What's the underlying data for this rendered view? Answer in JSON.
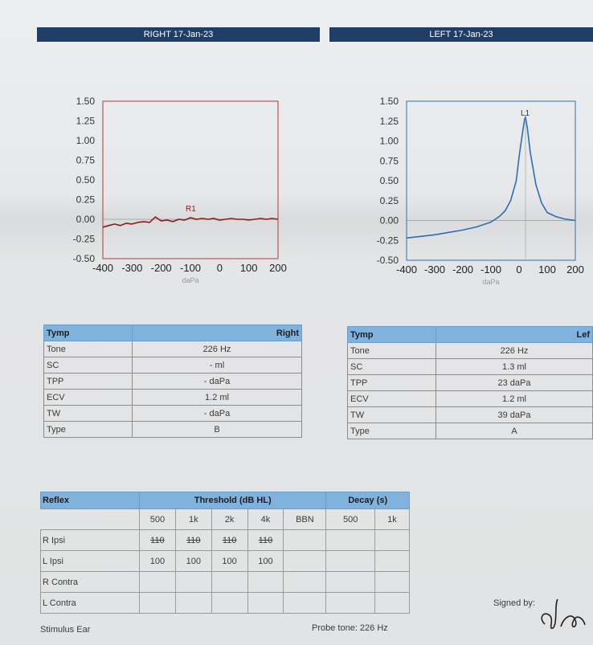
{
  "headers": {
    "right": "RIGHT  17-Jan-23",
    "left": "LEFT  17-Jan-23"
  },
  "chart_data": [
    {
      "type": "line",
      "title": "",
      "xlabel": "daPa",
      "ylabel": "",
      "xlim": [
        -400,
        200
      ],
      "ylim": [
        -0.5,
        1.5
      ],
      "x_ticks": [
        -400,
        -300,
        -200,
        -100,
        0,
        100,
        200
      ],
      "y_ticks": [
        1.5,
        1.25,
        1.0,
        0.75,
        0.5,
        0.25,
        0.0,
        -0.25,
        -0.5
      ],
      "marker": {
        "label": "R1",
        "x": -100,
        "y": 0.02
      },
      "color": "#8b1a1a",
      "series": [
        {
          "x": [
            -400,
            -380,
            -360,
            -340,
            -320,
            -300,
            -280,
            -260,
            -240,
            -220,
            -200,
            -180,
            -160,
            -140,
            -120,
            -100,
            -80,
            -60,
            -40,
            -20,
            0,
            20,
            40,
            60,
            80,
            100,
            120,
            140,
            160,
            180,
            200
          ],
          "y": [
            -0.1,
            -0.08,
            -0.06,
            -0.08,
            -0.05,
            -0.06,
            -0.04,
            -0.03,
            -0.04,
            0.03,
            -0.02,
            -0.01,
            -0.03,
            0.0,
            -0.01,
            0.02,
            0.0,
            0.01,
            0.0,
            0.01,
            -0.01,
            0.0,
            0.01,
            0.0,
            0.0,
            -0.01,
            0.0,
            0.01,
            0.0,
            0.01,
            0.0
          ]
        }
      ]
    },
    {
      "type": "line",
      "title": "",
      "xlabel": "daPa",
      "ylabel": "",
      "xlim": [
        -400,
        200
      ],
      "ylim": [
        -0.5,
        1.5
      ],
      "x_ticks": [
        -400,
        -300,
        -200,
        -100,
        0,
        100,
        200
      ],
      "y_ticks": [
        1.5,
        1.25,
        1.0,
        0.75,
        0.5,
        0.25,
        0.0,
        -0.25,
        -0.5
      ],
      "marker": {
        "label": "L1",
        "x": 23,
        "y": 1.3
      },
      "color": "#2c6fb8",
      "series": [
        {
          "x": [
            -400,
            -350,
            -300,
            -250,
            -200,
            -150,
            -100,
            -70,
            -50,
            -30,
            -10,
            0,
            10,
            20,
            23,
            30,
            40,
            60,
            80,
            100,
            130,
            160,
            200
          ],
          "y": [
            -0.22,
            -0.2,
            -0.18,
            -0.15,
            -0.12,
            -0.08,
            -0.02,
            0.05,
            0.12,
            0.25,
            0.5,
            0.8,
            1.05,
            1.28,
            1.3,
            1.15,
            0.85,
            0.45,
            0.22,
            0.1,
            0.05,
            0.02,
            0.0
          ]
        }
      ]
    }
  ],
  "tymp_right": {
    "title": "Tymp",
    "side": "Right",
    "rows": [
      {
        "label": "Tone",
        "value": "226 Hz"
      },
      {
        "label": "SC",
        "value": "-  ml"
      },
      {
        "label": "TPP",
        "value": "-  daPa"
      },
      {
        "label": "ECV",
        "value": "1.2  ml"
      },
      {
        "label": "TW",
        "value": "-  daPa"
      },
      {
        "label": "Type",
        "value": "B"
      }
    ]
  },
  "tymp_left": {
    "title": "Tymp",
    "side": "Lef",
    "rows": [
      {
        "label": "Tone",
        "value": "226 Hz"
      },
      {
        "label": "SC",
        "value": "1.3 ml"
      },
      {
        "label": "TPP",
        "value": "23 daPa"
      },
      {
        "label": "ECV",
        "value": "1.2 ml"
      },
      {
        "label": "TW",
        "value": "39 daPa"
      },
      {
        "label": "Type",
        "value": "A"
      }
    ]
  },
  "reflex": {
    "title": "Reflex",
    "threshold": "Threshold (dB HL)",
    "decay": "Decay (s)",
    "cols": [
      "500",
      "1k",
      "2k",
      "4k",
      "BBN",
      "500",
      "1k"
    ],
    "rows": [
      {
        "label": "R Ipsi",
        "values": [
          "110",
          "110",
          "110",
          "110",
          "",
          "",
          ""
        ]
      },
      {
        "label": "L Ipsi",
        "values": [
          "100",
          "100",
          "100",
          "100",
          "",
          "",
          ""
        ]
      },
      {
        "label": "R Contra",
        "values": [
          "",
          "",
          "",
          "",
          "",
          "",
          ""
        ]
      },
      {
        "label": "L Contra",
        "values": [
          "",
          "",
          "",
          "",
          "",
          "",
          ""
        ]
      }
    ]
  },
  "footer": {
    "stimulus": "Stimulus Ear",
    "probe": "Probe tone: 226 Hz",
    "signed": "Signed by:"
  }
}
